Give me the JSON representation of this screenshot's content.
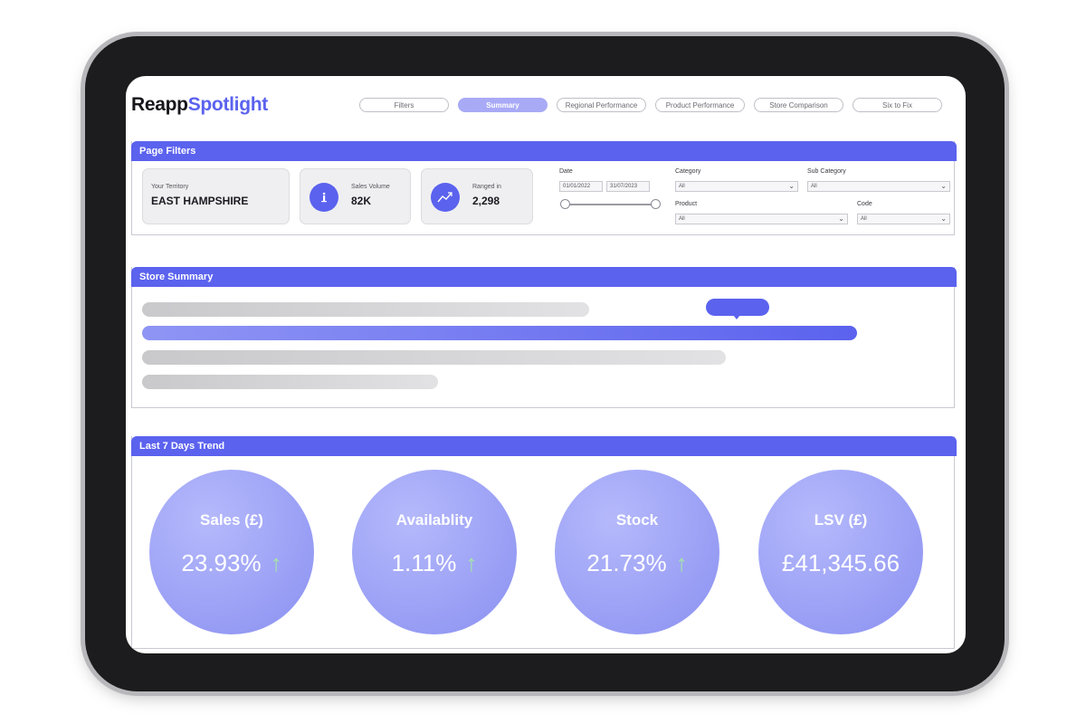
{
  "app": {
    "logo_part1": "Reapp",
    "logo_part2": "Spotlight"
  },
  "nav": {
    "tabs": [
      {
        "label": "Filters"
      },
      {
        "label": "Summary"
      },
      {
        "label": "Regional Performance"
      },
      {
        "label": "Product Performance"
      },
      {
        "label": "Store Comparison"
      },
      {
        "label": "Six to Fix"
      }
    ],
    "active_tab": "Summary"
  },
  "page_filters": {
    "title": "Page Filters",
    "territory": {
      "label": "Your Territory",
      "value": "EAST HAMPSHIRE"
    },
    "sales_volume": {
      "label": "Sales Volume",
      "value": "82K",
      "icon": "info-icon"
    },
    "ranged_in": {
      "label": "Ranged in",
      "value": "2,298",
      "icon": "trend-line-icon"
    },
    "date": {
      "label": "Date",
      "start": "01/01/2022",
      "end": "31/07/2023"
    },
    "category": {
      "label": "Category",
      "value": "All"
    },
    "sub_category": {
      "label": "Sub Category",
      "value": "All"
    },
    "product": {
      "label": "Product",
      "value": "All"
    },
    "code": {
      "label": "Code",
      "value": "All"
    }
  },
  "store_summary": {
    "title": "Store Summary"
  },
  "trend": {
    "title": "Last 7 Days Trend",
    "metrics": [
      {
        "title": "Sales (£)",
        "value": "23.93%",
        "trend": "up"
      },
      {
        "title": "Availablity",
        "value": "1.11%",
        "trend": "up"
      },
      {
        "title": "Stock",
        "value": "21.73%",
        "trend": "up"
      },
      {
        "title": "LSV (£)",
        "value": "£41,345.66",
        "trend": ""
      }
    ]
  },
  "colors": {
    "accent": "#5b62ee",
    "circle": "#a3a8f7",
    "arrow": "#a6e6a6"
  }
}
